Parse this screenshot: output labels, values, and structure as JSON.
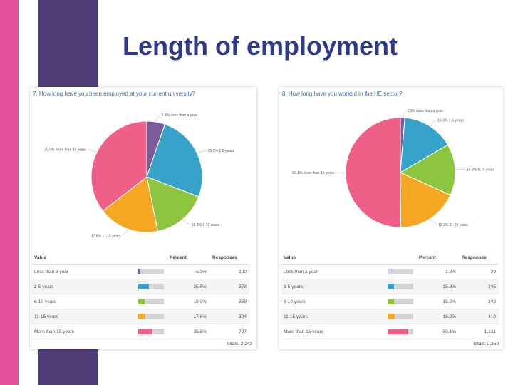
{
  "title": "Length of employment",
  "colors": [
    "#7a5c9c",
    "#38a3c9",
    "#8cc63f",
    "#f5a623",
    "#ee6088"
  ],
  "table_headers": {
    "value": "Value",
    "percent": "Percent",
    "responses": "Responses"
  },
  "chart_data": [
    {
      "type": "pie",
      "title": "7. How long have you been employed at your current university?",
      "categories": [
        "Less than a year",
        "1-5 years",
        "6-10 years",
        "11-15 years",
        "More than 15 years"
      ],
      "values": [
        5.3,
        25.5,
        16.0,
        17.6,
        35.5
      ],
      "slice_labels": [
        "5.3% Less than a year",
        "25.5% 1-5 years",
        "16.0% 6-10 years",
        "17.6% 11-15 years",
        "35.5% More than 15 years"
      ],
      "table_values": [
        "Less than a year",
        "1-5 years",
        "6-10 years",
        "11-15 years",
        "More than 15 years"
      ],
      "table_percents": [
        "5.3%",
        "25.5%",
        "16.0%",
        "17.6%",
        "35.5%"
      ],
      "responses": [
        "120",
        "573",
        "359",
        "394",
        "797"
      ],
      "total": "Totals: 2,243"
    },
    {
      "type": "pie",
      "title": "8. How long have you worked in the HE sector?",
      "categories": [
        "Less than a year",
        "1-5 years",
        "6-10 years",
        "11-15 years",
        "More than 15 years"
      ],
      "values": [
        1.3,
        15.3,
        15.2,
        18.2,
        50.1
      ],
      "slice_labels": [
        "1.3% Less than a year",
        "15.3% 1-5 years",
        "15.2% 6-10 years",
        "18.2% 11-15 years",
        "50.1% More than 15 years"
      ],
      "table_values": [
        "Less than a year",
        "1-5 years",
        "6-10 years",
        "11-15 years",
        "More than 15 years"
      ],
      "table_percents": [
        "1.3%",
        "15.3%",
        "15.2%",
        "18.2%",
        "50.1%"
      ],
      "responses": [
        "29",
        "345",
        "343",
        "410",
        "1,131"
      ],
      "total": "Totals: 2,258"
    }
  ]
}
